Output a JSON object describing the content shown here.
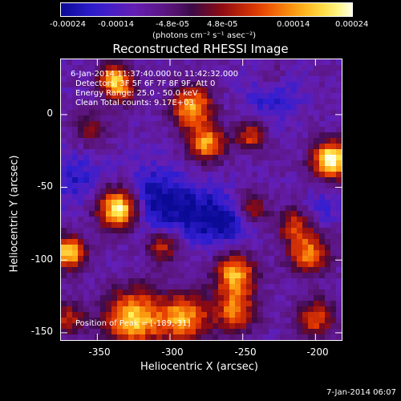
{
  "colorbar": {
    "ticks": [
      "-0.00024",
      "-0.00014",
      "-4.8e-05",
      "4.8e-05",
      "0.00014",
      "0.00024"
    ],
    "units": "(photons cm⁻² s⁻¹ asec⁻²)"
  },
  "plot": {
    "title": "Reconstructed RHESSI Image",
    "info": {
      "time": "6-Jan-2014 11:37:40.000 to 11:42:32.000",
      "detectors": "Detectors: 3F 5F 6F 7F 8F 9F, Att 0",
      "energy": "Energy Range: 25.0 - 50.0 keV",
      "clean": "Clean    Total counts: 9.17E+03",
      "peak": "Position of Peak = [-189,-31]"
    },
    "x_ticks": [
      "-350",
      "-300",
      "-250",
      "-200"
    ],
    "y_ticks": [
      "0",
      "-50",
      "-100",
      "-150"
    ],
    "xlabel": "Heliocentric X (arcsec)",
    "ylabel": "Heliocentric Y (arcsec)"
  },
  "footer": {
    "timestamp": "7-Jan-2014 06:07"
  },
  "chart_data": {
    "type": "heatmap",
    "title": "Reconstructed RHESSI Image",
    "xlabel": "Heliocentric X (arcsec)",
    "ylabel": "Heliocentric Y (arcsec)",
    "xlim": [
      -375,
      -182
    ],
    "ylim": [
      -155,
      38
    ],
    "colorbar_range": [
      -0.00024,
      0.00024
    ],
    "peak_position": [
      -189,
      -31
    ],
    "blobs": [
      {
        "x": -340,
        "y": 26,
        "intensity": 0.55,
        "sigma": 7
      },
      {
        "x": -333,
        "y": 18,
        "intensity": 0.5,
        "sigma": 8
      },
      {
        "x": -355,
        "y": -10,
        "intensity": 0.35,
        "sigma": 8
      },
      {
        "x": -285,
        "y": 5,
        "intensity": 0.75,
        "sigma": 10
      },
      {
        "x": -275,
        "y": -20,
        "intensity": 0.7,
        "sigma": 9
      },
      {
        "x": -230,
        "y": 25,
        "intensity": 0.3,
        "sigma": 7
      },
      {
        "x": -245,
        "y": -15,
        "intensity": 0.5,
        "sigma": 7
      },
      {
        "x": -189,
        "y": -31,
        "intensity": 1.0,
        "sigma": 9
      },
      {
        "x": -335,
        "y": -65,
        "intensity": 1.0,
        "sigma": 10
      },
      {
        "x": -245,
        "y": -65,
        "intensity": 0.45,
        "sigma": 8
      },
      {
        "x": -370,
        "y": -95,
        "intensity": 0.85,
        "sigma": 8
      },
      {
        "x": -305,
        "y": -90,
        "intensity": 0.5,
        "sigma": 8
      },
      {
        "x": -255,
        "y": -110,
        "intensity": 0.75,
        "sigma": 10
      },
      {
        "x": -205,
        "y": -95,
        "intensity": 0.65,
        "sigma": 10
      },
      {
        "x": -215,
        "y": -75,
        "intensity": 0.45,
        "sigma": 8
      },
      {
        "x": -325,
        "y": -140,
        "intensity": 0.8,
        "sigma": 14
      },
      {
        "x": -290,
        "y": -140,
        "intensity": 0.7,
        "sigma": 12
      },
      {
        "x": -255,
        "y": -135,
        "intensity": 0.6,
        "sigma": 10
      },
      {
        "x": -200,
        "y": -140,
        "intensity": 0.55,
        "sigma": 9
      },
      {
        "x": -370,
        "y": -140,
        "intensity": 0.45,
        "sigma": 8
      }
    ],
    "cold": [
      {
        "x": -310,
        "y": -60,
        "depth": 0.5,
        "sigma": 16
      },
      {
        "x": -275,
        "y": -70,
        "depth": 0.45,
        "sigma": 14
      },
      {
        "x": -230,
        "y": 15,
        "depth": 0.35,
        "sigma": 12
      },
      {
        "x": -255,
        "y": -75,
        "depth": 0.3,
        "sigma": 10
      },
      {
        "x": -365,
        "y": -45,
        "depth": 0.3,
        "sigma": 12
      },
      {
        "x": -195,
        "y": -65,
        "depth": 0.25,
        "sigma": 8
      }
    ]
  }
}
